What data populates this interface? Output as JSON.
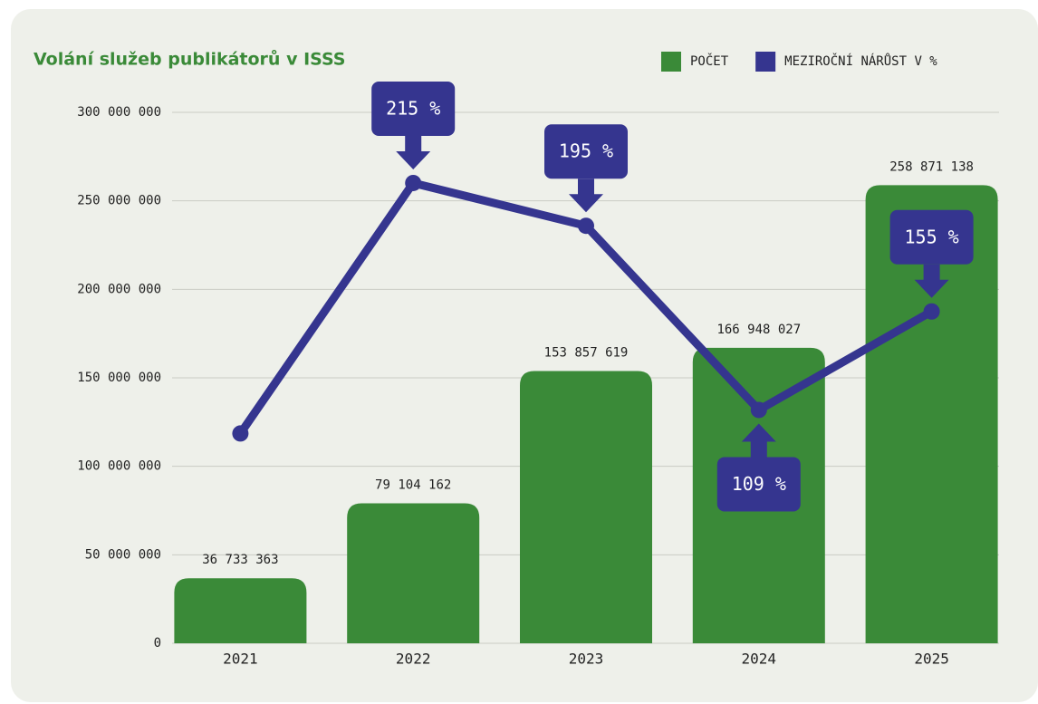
{
  "chart_data": {
    "type": "bar_line",
    "title": "Volání služeb publikátorů v ISSS",
    "categories": [
      "2021",
      "2022",
      "2023",
      "2024",
      "2025"
    ],
    "series": [
      {
        "name": "POČET",
        "type": "bar",
        "color": "#3a8a38",
        "values": [
          36733363,
          79104162,
          153857619,
          166948027,
          258871138
        ],
        "value_labels": [
          "36 733 363",
          "79 104 162",
          "153 857 619",
          "166 948 027",
          "258 871 138"
        ]
      },
      {
        "name": "MEZIROČNÍ NÁRŮST V %",
        "type": "line",
        "axis": "y2",
        "color": "#35358f",
        "values": [
          98,
          215,
          195,
          109,
          155
        ],
        "value_labels": [
          null,
          "215 %",
          "195 %",
          "109 %",
          "155 %"
        ]
      }
    ],
    "ylim": [
      0,
      300000000
    ],
    "yticks": [
      0,
      {
        "value": 50000000,
        "label": "50 000 000"
      },
      {
        "value": 100000000,
        "label": "100 000 000"
      },
      {
        "value": 150000000,
        "label": "150 000 000"
      },
      {
        "value": 200000000,
        "label": "200 000 000"
      },
      {
        "value": 250000000,
        "label": "250 000 000"
      },
      {
        "value": 300000000,
        "label": "300 000 000"
      }
    ],
    "y2lim": [
      0,
      248
    ],
    "grid": true,
    "legend": "top-right"
  }
}
